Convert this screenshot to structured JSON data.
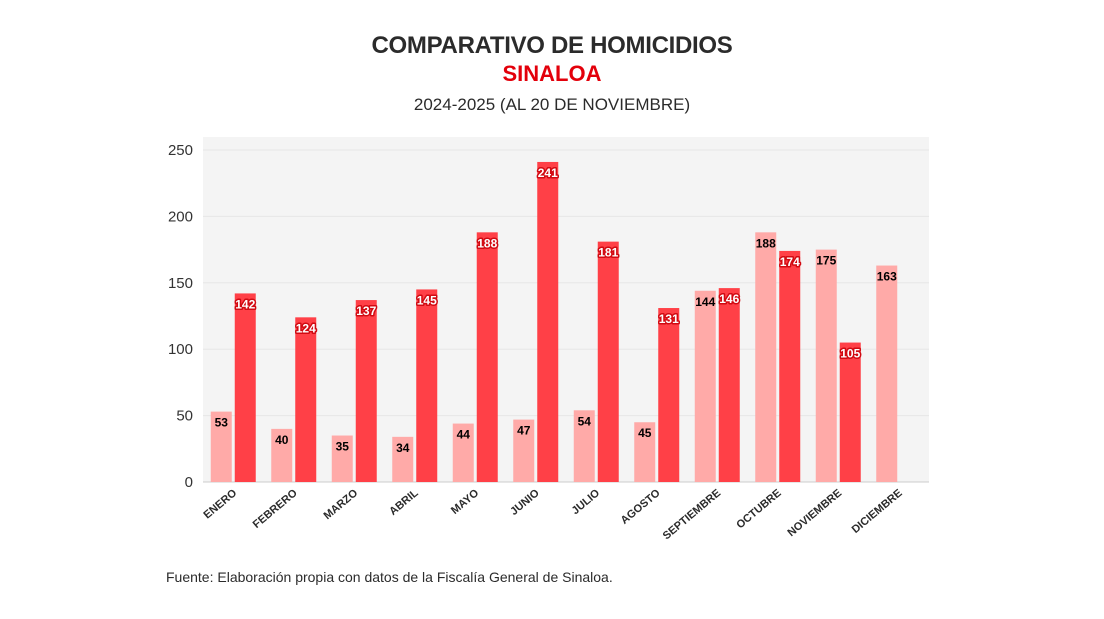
{
  "header": {
    "title": "COMPARATIVO DE HOMICIDIOS",
    "region": "SINALOA",
    "subtitle": "2024-2025 (AL 20 DE NOVIEMBRE)"
  },
  "footer": {
    "source": "Fuente: Elaboración propia con datos de la Fiscalía General de Sinaloa."
  },
  "chart_data": {
    "type": "bar",
    "categories": [
      "ENERO",
      "FEBRERO",
      "MARZO",
      "ABRIL",
      "MAYO",
      "JUNIO",
      "JULIO",
      "AGOSTO",
      "SEPTIEMBRE",
      "OCTUBRE",
      "NOVIEMBRE",
      "DICIEMBRE"
    ],
    "series": [
      {
        "values": [
          53,
          40,
          35,
          34,
          44,
          47,
          54,
          45,
          144,
          188,
          175,
          163
        ],
        "color": "#ffaaa8",
        "label_color": "#000000"
      },
      {
        "values": [
          142,
          124,
          137,
          145,
          188,
          241,
          181,
          131,
          146,
          174,
          105,
          null
        ],
        "color": "#ff4047",
        "label_color": "#ffffff"
      }
    ],
    "ylim": [
      0,
      260
    ],
    "yticks": [
      0,
      50,
      100,
      150,
      200,
      250
    ],
    "grid": true,
    "plot_background": "#f4f4f4"
  }
}
